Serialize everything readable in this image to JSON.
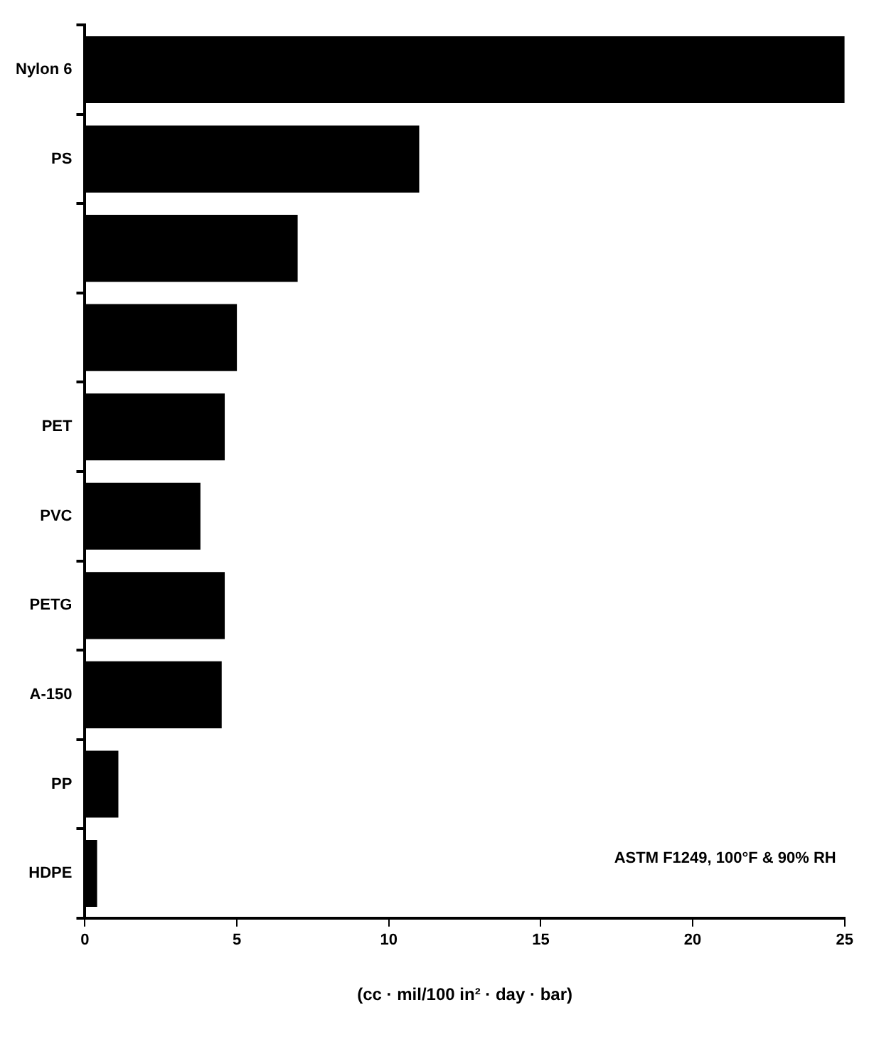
{
  "chart_data": {
    "type": "bar",
    "orientation": "horizontal",
    "xlabel": "(cc · mil/100 in² · day · bar)",
    "categories": [
      "Nylon 6",
      "PS",
      null,
      null,
      "PET",
      "PVC",
      "PETG",
      "A-150",
      "PP",
      "HDPE"
    ],
    "values": [
      25,
      11,
      7,
      5,
      4.6,
      3.8,
      4.6,
      4.5,
      1.1,
      0.4
    ],
    "color": "#000000",
    "xlim": [
      0,
      25
    ],
    "xticks": [
      0,
      5,
      10,
      15,
      20,
      25
    ],
    "grid": false,
    "legend": false,
    "annotations": [
      "ASTM F1249, 100°F & 90% RH"
    ]
  }
}
